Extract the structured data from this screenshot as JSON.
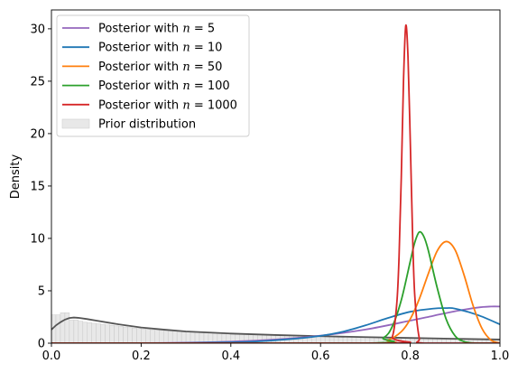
{
  "chart_data": {
    "type": "line",
    "title": "",
    "xlabel": "",
    "ylabel": "Density",
    "xlim": [
      0,
      1
    ],
    "ylim": [
      0,
      31.8
    ],
    "xticks": [
      0.0,
      0.2,
      0.4,
      0.6,
      0.8,
      1.0
    ],
    "xtick_labels": [
      "0.0",
      "0.2",
      "0.4",
      "0.6",
      "0.8",
      "1.0"
    ],
    "yticks": [
      0,
      5,
      10,
      15,
      20,
      25,
      30
    ],
    "ytick_labels": [
      "0",
      "5",
      "10",
      "15",
      "20",
      "25",
      "30"
    ],
    "grid": false,
    "legend_position": "top-left",
    "legend": [
      {
        "label": "Posterior with n = 5",
        "prefix": "Posterior with ",
        "var": "n",
        "suffix": " = 5",
        "color": "#9467bd",
        "kind": "line"
      },
      {
        "label": "Posterior with n = 10",
        "prefix": "Posterior with ",
        "var": "n",
        "suffix": " = 10",
        "color": "#1f77b4",
        "kind": "line"
      },
      {
        "label": "Posterior with n = 50",
        "prefix": "Posterior with ",
        "var": "n",
        "suffix": " = 50",
        "color": "#ff7f0e",
        "kind": "line"
      },
      {
        "label": "Posterior with n = 100",
        "prefix": "Posterior with ",
        "var": "n",
        "suffix": " = 100",
        "color": "#2ca02c",
        "kind": "line"
      },
      {
        "label": "Posterior with n = 1000",
        "prefix": "Posterior with ",
        "var": "n",
        "suffix": " = 1000",
        "color": "#d62728",
        "kind": "line"
      },
      {
        "label": "Prior distribution",
        "prefix": "Prior distribution",
        "var": "",
        "suffix": "",
        "color": "#e8e8e8",
        "kind": "patch"
      }
    ],
    "series": [
      {
        "name": "Posterior with n = 5",
        "color": "#9467bd",
        "x": [
          0.0,
          0.1,
          0.2,
          0.3,
          0.4,
          0.5,
          0.6,
          0.7,
          0.8,
          0.85,
          0.9,
          0.95,
          0.98,
          1.0
        ],
        "y": [
          0.0,
          0.0,
          0.01,
          0.05,
          0.15,
          0.35,
          0.72,
          1.3,
          2.15,
          2.6,
          3.05,
          3.4,
          3.5,
          3.5
        ]
      },
      {
        "name": "Posterior with n = 10",
        "color": "#1f77b4",
        "x": [
          0.0,
          0.2,
          0.3,
          0.4,
          0.45,
          0.5,
          0.55,
          0.6,
          0.65,
          0.7,
          0.75,
          0.8,
          0.85,
          0.88,
          0.9,
          0.95,
          1.0
        ],
        "y": [
          0.0,
          0.0,
          0.02,
          0.08,
          0.15,
          0.28,
          0.45,
          0.7,
          1.1,
          1.7,
          2.4,
          3.0,
          3.3,
          3.35,
          3.3,
          2.7,
          1.8
        ]
      },
      {
        "name": "Posterior with n = 50",
        "color": "#ff7f0e",
        "x": [
          0.0,
          0.7,
          0.75,
          0.78,
          0.8,
          0.82,
          0.84,
          0.86,
          0.88,
          0.9,
          0.92,
          0.94,
          0.96,
          0.98,
          1.0
        ],
        "y": [
          0.0,
          0.0,
          0.3,
          1.1,
          2.3,
          4.2,
          6.6,
          8.8,
          9.7,
          8.9,
          6.5,
          3.6,
          1.4,
          0.3,
          0.0
        ]
      },
      {
        "name": "Posterior with n = 100",
        "color": "#2ca02c",
        "x": [
          0.0,
          0.7,
          0.74,
          0.76,
          0.78,
          0.8,
          0.81,
          0.82,
          0.83,
          0.84,
          0.86,
          0.88,
          0.9,
          0.92,
          0.94,
          0.96,
          1.0
        ],
        "y": [
          0.0,
          0.0,
          0.5,
          1.6,
          4.1,
          7.8,
          9.6,
          10.6,
          10.2,
          8.9,
          5.3,
          2.3,
          0.7,
          0.15,
          0.02,
          0.0,
          0.0
        ]
      },
      {
        "name": "Posterior with n = 1000",
        "color": "#d62728",
        "x": [
          0.0,
          0.74,
          0.76,
          0.77,
          0.775,
          0.78,
          0.785,
          0.79,
          0.795,
          0.8,
          0.805,
          0.81,
          0.82,
          0.83,
          1.0
        ],
        "y": [
          0.0,
          0.0,
          0.6,
          3.8,
          8.2,
          15.8,
          25.1,
          30.3,
          27.3,
          19.4,
          10.7,
          4.6,
          0.5,
          0.0,
          0.0
        ]
      }
    ],
    "prior_curve": {
      "color": "#555555",
      "x": [
        0.0,
        0.01,
        0.02,
        0.03,
        0.04,
        0.05,
        0.06,
        0.08,
        0.1,
        0.15,
        0.2,
        0.25,
        0.3,
        0.4,
        0.5,
        0.6,
        0.7,
        0.8,
        0.9,
        1.0
      ],
      "y": [
        1.3,
        1.7,
        2.0,
        2.25,
        2.4,
        2.45,
        2.42,
        2.3,
        2.15,
        1.8,
        1.5,
        1.3,
        1.12,
        0.92,
        0.78,
        0.67,
        0.58,
        0.5,
        0.42,
        0.35
      ]
    },
    "prior_histogram": {
      "bin_width": 0.01,
      "heights": [
        2.7,
        2.7,
        2.9,
        2.9,
        2.2,
        2.2,
        2.1,
        2.0,
        1.95,
        1.9,
        1.85,
        1.8,
        1.75,
        1.7,
        1.65,
        1.6,
        1.55,
        1.5,
        1.45,
        1.4,
        1.35,
        1.32,
        1.28,
        1.25,
        1.22,
        1.19,
        1.16,
        1.13,
        1.1,
        1.08,
        1.06,
        1.04,
        1.02,
        1.0,
        0.98,
        0.96,
        0.94,
        0.92,
        0.9,
        0.88,
        0.87,
        0.86,
        0.85,
        0.84,
        0.83,
        0.82,
        0.81,
        0.8,
        0.79,
        0.78,
        0.77,
        0.76,
        0.75,
        0.74,
        0.73,
        0.72,
        0.71,
        0.7,
        0.69,
        0.68,
        0.67,
        0.66,
        0.65,
        0.64,
        0.63,
        0.62,
        0.61,
        0.6,
        0.6,
        0.59,
        0.58,
        0.57,
        0.56,
        0.55,
        0.54,
        0.53,
        0.52,
        0.51,
        0.5,
        0.5,
        0.49,
        0.48,
        0.47,
        0.46,
        0.45,
        0.45,
        0.44,
        0.43,
        0.43,
        0.42,
        0.41,
        0.4,
        0.4,
        0.39,
        0.38,
        0.38,
        0.37,
        0.36,
        0.36,
        0.35
      ],
      "fill": "#e8e8e8",
      "edge": "#c8c8c8"
    }
  }
}
